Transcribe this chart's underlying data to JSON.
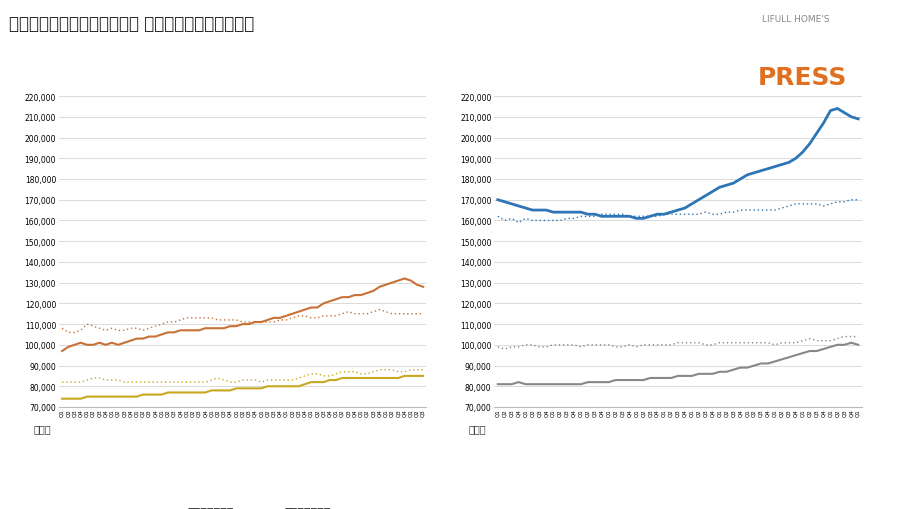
{
  "title": "【ファミリー向き賃貸物件】 掲載賃料・反響賃料推移",
  "ylabel": "（円）",
  "ylim": [
    70000,
    225000
  ],
  "yticks": [
    70000,
    80000,
    90000,
    100000,
    110000,
    120000,
    130000,
    140000,
    150000,
    160000,
    170000,
    180000,
    190000,
    200000,
    210000,
    220000
  ],
  "left": {
    "shuto_listed": [
      97000,
      99000,
      100000,
      101000,
      100000,
      100000,
      101000,
      100000,
      101000,
      100000,
      101000,
      102000,
      103000,
      103000,
      104000,
      104000,
      105000,
      106000,
      106000,
      107000,
      107000,
      107000,
      107000,
      108000,
      108000,
      108000,
      108000,
      109000,
      109000,
      110000,
      110000,
      111000,
      111000,
      112000,
      113000,
      113000,
      114000,
      115000,
      116000,
      117000,
      118000,
      118000,
      120000,
      121000,
      122000,
      123000,
      123000,
      124000,
      124000,
      125000,
      126000,
      128000,
      129000,
      130000,
      131000,
      132000,
      131000,
      129000,
      128000
    ],
    "shuto_hibiki": [
      108000,
      106000,
      106000,
      107000,
      110000,
      109000,
      108000,
      107000,
      108000,
      107000,
      107000,
      108000,
      108000,
      107000,
      108000,
      109000,
      110000,
      111000,
      111000,
      112000,
      113000,
      113000,
      113000,
      113000,
      113000,
      112000,
      112000,
      112000,
      112000,
      111000,
      111000,
      111000,
      111000,
      111000,
      111000,
      112000,
      112000,
      113000,
      114000,
      114000,
      113000,
      113000,
      114000,
      114000,
      114000,
      115000,
      116000,
      115000,
      115000,
      115000,
      116000,
      117000,
      116000,
      115000,
      115000,
      115000,
      115000,
      115000,
      115000
    ],
    "kinki_listed": [
      74000,
      74000,
      74000,
      74000,
      75000,
      75000,
      75000,
      75000,
      75000,
      75000,
      75000,
      75000,
      75000,
      76000,
      76000,
      76000,
      76000,
      77000,
      77000,
      77000,
      77000,
      77000,
      77000,
      77000,
      78000,
      78000,
      78000,
      78000,
      79000,
      79000,
      79000,
      79000,
      79000,
      80000,
      80000,
      80000,
      80000,
      80000,
      80000,
      81000,
      82000,
      82000,
      82000,
      83000,
      83000,
      84000,
      84000,
      84000,
      84000,
      84000,
      84000,
      84000,
      84000,
      84000,
      84000,
      85000,
      85000,
      85000,
      85000
    ],
    "kinki_hibiki": [
      82000,
      82000,
      82000,
      82000,
      83000,
      84000,
      84000,
      83000,
      83000,
      83000,
      82000,
      82000,
      82000,
      82000,
      82000,
      82000,
      82000,
      82000,
      82000,
      82000,
      82000,
      82000,
      82000,
      82000,
      83000,
      84000,
      83000,
      82000,
      82000,
      83000,
      83000,
      83000,
      82000,
      83000,
      83000,
      83000,
      83000,
      83000,
      84000,
      85000,
      86000,
      86000,
      85000,
      85000,
      86000,
      87000,
      87000,
      87000,
      86000,
      86000,
      87000,
      88000,
      88000,
      88000,
      87000,
      87000,
      88000,
      88000,
      88000
    ]
  },
  "right": {
    "tokyo23_listed": [
      170000,
      169000,
      168000,
      167000,
      166000,
      165000,
      165000,
      165000,
      164000,
      164000,
      164000,
      164000,
      164000,
      163000,
      163000,
      162000,
      162000,
      162000,
      162000,
      162000,
      161000,
      161000,
      162000,
      163000,
      163000,
      164000,
      165000,
      166000,
      168000,
      170000,
      172000,
      174000,
      176000,
      177000,
      178000,
      180000,
      182000,
      183000,
      184000,
      185000,
      186000,
      187000,
      188000,
      190000,
      193000,
      197000,
      202000,
      207000,
      213000,
      214000,
      212000,
      210000,
      209000
    ],
    "tokyo23_hibiki": [
      162000,
      160000,
      161000,
      159000,
      161000,
      160000,
      160000,
      160000,
      160000,
      160000,
      161000,
      161000,
      162000,
      162000,
      162000,
      163000,
      163000,
      163000,
      163000,
      162000,
      162000,
      162000,
      162000,
      162000,
      163000,
      163000,
      163000,
      163000,
      163000,
      163000,
      164000,
      163000,
      163000,
      164000,
      164000,
      165000,
      165000,
      165000,
      165000,
      165000,
      165000,
      166000,
      167000,
      168000,
      168000,
      168000,
      168000,
      167000,
      168000,
      169000,
      169000,
      170000,
      170000
    ],
    "tokyoshi_listed": [
      81000,
      81000,
      81000,
      82000,
      81000,
      81000,
      81000,
      81000,
      81000,
      81000,
      81000,
      81000,
      81000,
      82000,
      82000,
      82000,
      82000,
      83000,
      83000,
      83000,
      83000,
      83000,
      84000,
      84000,
      84000,
      84000,
      85000,
      85000,
      85000,
      86000,
      86000,
      86000,
      87000,
      87000,
      88000,
      89000,
      89000,
      90000,
      91000,
      91000,
      92000,
      93000,
      94000,
      95000,
      96000,
      97000,
      97000,
      98000,
      99000,
      100000,
      100000,
      101000,
      100000
    ],
    "tokyoshi_hibiki": [
      99000,
      98000,
      99000,
      99000,
      100000,
      100000,
      99000,
      99000,
      100000,
      100000,
      100000,
      100000,
      99000,
      100000,
      100000,
      100000,
      100000,
      99000,
      99000,
      100000,
      99000,
      100000,
      100000,
      100000,
      100000,
      100000,
      101000,
      101000,
      101000,
      101000,
      100000,
      100000,
      101000,
      101000,
      101000,
      101000,
      101000,
      101000,
      101000,
      101000,
      100000,
      101000,
      101000,
      101000,
      102000,
      103000,
      102000,
      102000,
      102000,
      103000,
      104000,
      104000,
      104000
    ]
  },
  "colors": {
    "shuto_listed": "#C87137",
    "shuto_hibiki": "#C87137",
    "kinki_listed": "#C8A820",
    "kinki_hibiki": "#C8A820",
    "tokyo23_listed": "#2E75B6",
    "tokyo23_hibiki": "#2E75B6",
    "tokyoshi_listed": "#888888",
    "tokyoshi_hibiki": "#888888"
  },
  "background_color": "#FFFFFF",
  "grid_color": "#CCCCCC",
  "title_fontsize": 12,
  "tick_fontsize": 5.5,
  "legend_fontsize": 8,
  "ylabel_fontsize": 7,
  "press_color": "#E07020",
  "press_small_color": "#888888"
}
